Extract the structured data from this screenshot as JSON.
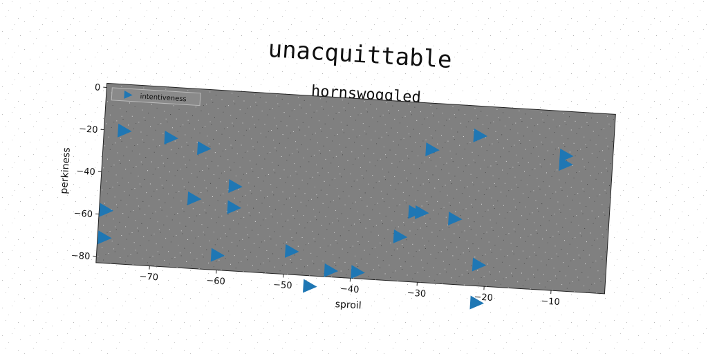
{
  "chart_data": {
    "type": "scatter",
    "title": "hornswoggled",
    "suptitle": "unacquittable",
    "xlabel": "sproil",
    "ylabel": "perkiness",
    "xlim": [
      -78,
      -2
    ],
    "ylim": [
      -83,
      2
    ],
    "x_ticks": [
      -70,
      -60,
      -50,
      -40,
      -30,
      -20,
      -10
    ],
    "y_ticks": [
      0,
      -20,
      -40,
      -60,
      -80
    ],
    "grid": false,
    "legend_position": "top-left",
    "marker": "triangle-right",
    "background": "#808080",
    "series": [
      {
        "name": "intentiveness",
        "color": "#1f77b4",
        "points": [
          {
            "x": -75,
            "y": -20
          },
          {
            "x": -68,
            "y": -22
          },
          {
            "x": -63,
            "y": -26
          },
          {
            "x": -58,
            "y": -43
          },
          {
            "x": -64,
            "y": -50
          },
          {
            "x": -58,
            "y": -53
          },
          {
            "x": -77,
            "y": -58
          },
          {
            "x": -77,
            "y": -71
          },
          {
            "x": -60,
            "y": -76
          },
          {
            "x": -49,
            "y": -72
          },
          {
            "x": -46,
            "y": -88
          },
          {
            "x": -43,
            "y": -80
          },
          {
            "x": -39,
            "y": -80
          },
          {
            "x": -33,
            "y": -62
          },
          {
            "x": -31,
            "y": -50
          },
          {
            "x": -30,
            "y": -50
          },
          {
            "x": -25,
            "y": -52
          },
          {
            "x": -29,
            "y": -20
          },
          {
            "x": -22,
            "y": -12
          },
          {
            "x": -21,
            "y": -73
          },
          {
            "x": -21,
            "y": -91
          },
          {
            "x": -9,
            "y": -19
          },
          {
            "x": -9,
            "y": -23
          }
        ]
      }
    ]
  }
}
